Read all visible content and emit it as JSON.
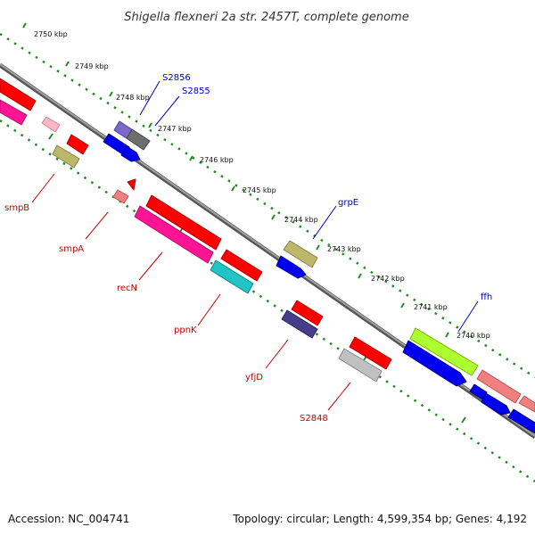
{
  "title": "Shigella flexneri 2a str. 2457T, complete genome",
  "footer": {
    "accession": "Accession: NC_004741",
    "topology": "Topology: circular; Length: 4,599,354 bp; Genes: 4,192"
  },
  "ticks": [
    {
      "label": "2750 kbp"
    },
    {
      "label": "2749 kbp"
    },
    {
      "label": "2748 kbp"
    },
    {
      "label": "2747 kbp"
    },
    {
      "label": "2746 kbp"
    },
    {
      "label": "2745 kbp"
    },
    {
      "label": "2744 kbp"
    },
    {
      "label": "2743 kbp"
    },
    {
      "label": "2742 kbp"
    },
    {
      "label": "2741 kbp"
    },
    {
      "label": "2740 kbp"
    }
  ],
  "gene_labels": [
    {
      "label": "S2856",
      "color": "#0000cc"
    },
    {
      "label": "S2855",
      "color": "#0000cc"
    },
    {
      "label": "grpE",
      "color": "#0000cc"
    },
    {
      "label": "ffh",
      "color": "#0000cc"
    },
    {
      "label": "smpB",
      "color": "#cc0000"
    },
    {
      "label": "smpA",
      "color": "#cc0000"
    },
    {
      "label": "recN",
      "color": "#cc0000"
    },
    {
      "label": "ppnK",
      "color": "#cc0000"
    },
    {
      "label": "yfjD",
      "color": "#cc0000"
    },
    {
      "label": "S2848",
      "color": "#cc0000"
    }
  ],
  "colors": {
    "backbone": "#808080",
    "tick_dots": "#228b22",
    "forward_strand_labels": "#0000cc",
    "reverse_strand_labels": "#cc0000"
  }
}
